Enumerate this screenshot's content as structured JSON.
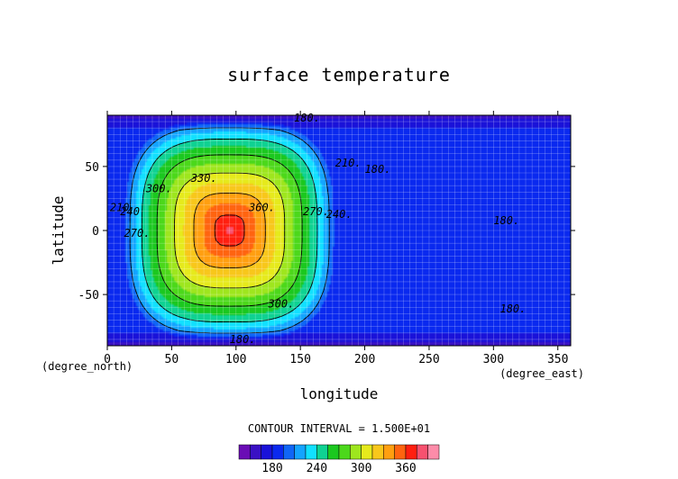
{
  "chart_data": {
    "type": "heatmap",
    "title": "surface temperature",
    "xlabel": "longitude",
    "ylabel": "latitude",
    "x_unit": "(degree_east)",
    "y_unit": "(degree_north)",
    "xlim": [
      0,
      360
    ],
    "ylim": [
      -90,
      90
    ],
    "x_ticks": [
      0,
      50,
      100,
      150,
      200,
      250,
      300,
      350
    ],
    "y_ticks": [
      -50,
      0,
      50
    ],
    "grid": true,
    "contour_interval_text": "CONTOUR INTERVAL = 1.500E+01",
    "levels": [
      150,
      165,
      180,
      195,
      210,
      225,
      240,
      255,
      270,
      285,
      300,
      315,
      330,
      345,
      360,
      375
    ],
    "colorbar_ticks": [
      180,
      240,
      300,
      360
    ],
    "field": {
      "description_of_values": "approximate surface temperature, hot region centered near lon 95, lat 0",
      "day_center": [
        95,
        0
      ],
      "max": 380,
      "night_level": 186,
      "polar_min": 160
    },
    "contour_labels": [
      {
        "text": "180.",
        "lon": 145,
        "lat": 85
      },
      {
        "text": "210",
        "lon": 2,
        "lat": 15
      },
      {
        "text": "240",
        "lon": 10,
        "lat": 12
      },
      {
        "text": "270.",
        "lon": 13,
        "lat": -5
      },
      {
        "text": "300.",
        "lon": 30,
        "lat": 30
      },
      {
        "text": "330.",
        "lon": 65,
        "lat": 38
      },
      {
        "text": "360.",
        "lon": 110,
        "lat": 15
      },
      {
        "text": "270.",
        "lon": 152,
        "lat": 12
      },
      {
        "text": "240.",
        "lon": 170,
        "lat": 10
      },
      {
        "text": "210.",
        "lon": 177,
        "lat": 50
      },
      {
        "text": "300.",
        "lon": 125,
        "lat": -60
      },
      {
        "text": "180.",
        "lon": 305,
        "lat": -64
      },
      {
        "text": "180.",
        "lon": 95,
        "lat": -88
      },
      {
        "text": "180.",
        "lon": 200,
        "lat": 45
      },
      {
        "text": "180.",
        "lon": 300,
        "lat": 5
      }
    ]
  },
  "colors": {
    "palette": [
      "#6a0cb5",
      "#3a11c4",
      "#1a12d9",
      "#0a29ef",
      "#1066f6",
      "#14a4ff",
      "#12e0ff",
      "#0fd292",
      "#1bc81f",
      "#4cd81b",
      "#9ee61e",
      "#e6ea1c",
      "#f8c71b",
      "#ff9f10",
      "#ff6410",
      "#ff1f10",
      "#f7516f",
      "#fd8ca9"
    ],
    "contour_line": "#000000"
  }
}
